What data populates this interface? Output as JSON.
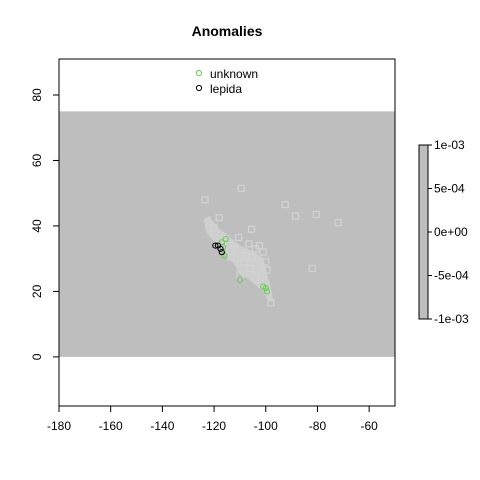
{
  "chart_data": {
    "type": "scatter",
    "title": "Anomalies",
    "xlabel": "",
    "ylabel": "",
    "xlim": [
      -180,
      -50
    ],
    "ylim": [
      -15,
      91
    ],
    "x_ticks": [
      -180,
      -160,
      -140,
      -120,
      -100,
      -80,
      -60
    ],
    "y_ticks": [
      0,
      20,
      40,
      60,
      80
    ],
    "grid": false,
    "raster": {
      "extent_x": [
        -180,
        -50
      ],
      "extent_y": [
        0,
        75
      ],
      "background_color": "#bebebe",
      "anomaly_zone_color": "#cfcfcf",
      "anomaly_zone_outline": [
        [
          -124,
          42
        ],
        [
          -122,
          43
        ],
        [
          -120,
          41
        ],
        [
          -118,
          39
        ],
        [
          -116,
          38
        ],
        [
          -113,
          36
        ],
        [
          -110,
          34
        ],
        [
          -107,
          33
        ],
        [
          -104,
          32
        ],
        [
          -101,
          30
        ],
        [
          -100,
          27
        ],
        [
          -99,
          24
        ],
        [
          -98,
          21
        ],
        [
          -97,
          17
        ],
        [
          -99,
          17
        ],
        [
          -101,
          20
        ],
        [
          -104,
          22
        ],
        [
          -107,
          24
        ],
        [
          -110,
          25
        ],
        [
          -112,
          28
        ],
        [
          -114,
          30
        ],
        [
          -116,
          32
        ],
        [
          -118,
          34
        ],
        [
          -121,
          36
        ],
        [
          -123,
          38
        ]
      ]
    },
    "legend_scale": {
      "labels": [
        "1e-03",
        "5e-04",
        "0e+00",
        "-5e-04",
        "-1e-03"
      ],
      "values": [
        0.001,
        0.0005,
        0,
        -0.0005,
        -0.001
      ],
      "color": "#bebebe"
    },
    "legend": {
      "placement": "top",
      "entries": [
        {
          "name": "unknown",
          "marker": "circle",
          "color": "#66cc55"
        },
        {
          "name": "lepida",
          "marker": "circle",
          "color": "#000000"
        }
      ]
    },
    "series": [
      {
        "name": "unknown",
        "marker": "circle",
        "color": "#66cc55",
        "points": [
          {
            "x": -115.5,
            "y": 36.0
          },
          {
            "x": -116.5,
            "y": 33.5
          },
          {
            "x": -117.0,
            "y": 35.0
          },
          {
            "x": -116.0,
            "y": 31.0
          },
          {
            "x": -110.0,
            "y": 23.5
          },
          {
            "x": -101.0,
            "y": 21.5
          },
          {
            "x": -100.0,
            "y": 21.0
          },
          {
            "x": -99.5,
            "y": 20.0
          }
        ]
      },
      {
        "name": "lepida",
        "marker": "circle",
        "color": "#000000",
        "points": [
          {
            "x": -119.5,
            "y": 34.0
          },
          {
            "x": -118.5,
            "y": 34.0
          },
          {
            "x": -117.5,
            "y": 33.0
          },
          {
            "x": -117.0,
            "y": 32.0
          }
        ]
      },
      {
        "name": "",
        "marker": "square",
        "color": "#d3d3d3",
        "points": [
          {
            "x": -123.5,
            "y": 48.0
          },
          {
            "x": -109.5,
            "y": 51.5
          },
          {
            "x": -92.5,
            "y": 46.5
          },
          {
            "x": -88.5,
            "y": 43.0
          },
          {
            "x": -80.5,
            "y": 43.5
          },
          {
            "x": -72.0,
            "y": 41.0
          },
          {
            "x": -105.5,
            "y": 39.0
          },
          {
            "x": -118.0,
            "y": 42.5
          },
          {
            "x": -110.5,
            "y": 36.5
          },
          {
            "x": -104.0,
            "y": 33.0
          },
          {
            "x": -102.5,
            "y": 34.0
          },
          {
            "x": -101.0,
            "y": 32.0
          },
          {
            "x": -100.0,
            "y": 29.0
          },
          {
            "x": -99.5,
            "y": 26.5
          },
          {
            "x": -105.0,
            "y": 30.5
          },
          {
            "x": -108.0,
            "y": 31.0
          },
          {
            "x": -82.0,
            "y": 27.0
          },
          {
            "x": -98.0,
            "y": 16.5
          },
          {
            "x": -110.0,
            "y": 25.0
          },
          {
            "x": -120.0,
            "y": 39.5
          },
          {
            "x": -112.0,
            "y": 33.5
          },
          {
            "x": -106.5,
            "y": 34.5
          },
          {
            "x": -108.5,
            "y": 29.0
          },
          {
            "x": -113.5,
            "y": 30.5
          },
          {
            "x": -102.0,
            "y": 23.5
          },
          {
            "x": -106.0,
            "y": 27.0
          }
        ]
      }
    ]
  }
}
